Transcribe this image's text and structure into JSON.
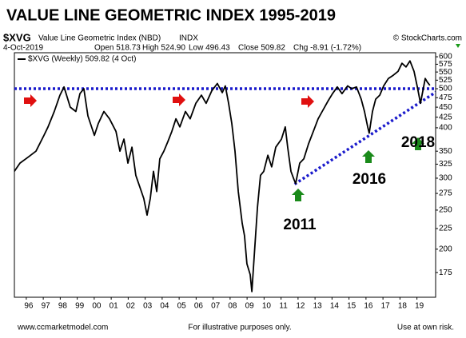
{
  "chart_data": {
    "type": "line",
    "title": "VALUE LINE GEOMETRIC INDEX 1995-2019",
    "symbol": "$XVG",
    "symbol_name": "Value Line Geometric Index (NBD)",
    "exchange": "INDX",
    "source": "© StockCharts.com",
    "date": "4-Oct-2019",
    "quote": [
      "Open 518.73",
      "High 524.90",
      "Low 496.43",
      "Close 509.82",
      "Chg -8.91 (-1.72%)"
    ],
    "log_scale": true,
    "grid": false,
    "xlim": [
      1995.3,
      2020.1
    ],
    "ylim": [
      152,
      614
    ],
    "xticks": [
      {
        "value": 1996,
        "label": "96"
      },
      {
        "value": 1997,
        "label": "97"
      },
      {
        "value": 1998,
        "label": "98"
      },
      {
        "value": 1999,
        "label": "99"
      },
      {
        "value": 2000,
        "label": "00"
      },
      {
        "value": 2001,
        "label": "01"
      },
      {
        "value": 2002,
        "label": "02"
      },
      {
        "value": 2003,
        "label": "03"
      },
      {
        "value": 2004,
        "label": "04"
      },
      {
        "value": 2005,
        "label": "05"
      },
      {
        "value": 2006,
        "label": "06"
      },
      {
        "value": 2007,
        "label": "07"
      },
      {
        "value": 2008,
        "label": "08"
      },
      {
        "value": 2009,
        "label": "09"
      },
      {
        "value": 2010,
        "label": "10"
      },
      {
        "value": 2011,
        "label": "11"
      },
      {
        "value": 2012,
        "label": "12"
      },
      {
        "value": 2013,
        "label": "13"
      },
      {
        "value": 2014,
        "label": "14"
      },
      {
        "value": 2015,
        "label": "15"
      },
      {
        "value": 2016,
        "label": "16"
      },
      {
        "value": 2017,
        "label": "17"
      },
      {
        "value": 2018,
        "label": "18"
      },
      {
        "value": 2019,
        "label": "19"
      }
    ],
    "yticks": [
      175,
      200,
      225,
      250,
      275,
      300,
      325,
      350,
      400,
      425,
      450,
      475,
      500,
      525,
      550,
      575,
      600
    ],
    "x": [
      1995.3,
      1995.63,
      1996.1,
      1996.57,
      1997.04,
      1997.28,
      1997.65,
      1997.98,
      1998.22,
      1998.59,
      1998.92,
      1999.16,
      1999.39,
      1999.63,
      2000.01,
      2000.24,
      2000.57,
      2000.9,
      2001.28,
      2001.51,
      2001.75,
      2001.98,
      2002.22,
      2002.45,
      2002.69,
      2002.92,
      2003.11,
      2003.3,
      2003.49,
      2003.68,
      2003.86,
      2004.1,
      2004.34,
      2004.57,
      2004.81,
      2005.04,
      2005.37,
      2005.65,
      2005.98,
      2006.31,
      2006.59,
      2006.92,
      2007.25,
      2007.54,
      2007.72,
      2007.91,
      2008.1,
      2008.29,
      2008.48,
      2008.71,
      2008.85,
      2008.99,
      2009.18,
      2009.28,
      2009.42,
      2009.61,
      2009.79,
      2009.98,
      2010.22,
      2010.45,
      2010.69,
      2011.02,
      2011.25,
      2011.39,
      2011.58,
      2011.77,
      2011.86,
      2012.1,
      2012.34,
      2012.62,
      2012.9,
      2013.18,
      2013.42,
      2013.75,
      2014.03,
      2014.31,
      2014.59,
      2014.92,
      2015.16,
      2015.44,
      2015.72,
      2015.91,
      2016.1,
      2016.19,
      2016.38,
      2016.57,
      2016.81,
      2017.04,
      2017.32,
      2017.61,
      2017.89,
      2018.12,
      2018.36,
      2018.59,
      2018.83,
      2019.02,
      2019.21,
      2019.3,
      2019.49,
      2019.6,
      2019.76
    ],
    "series": [
      {
        "name": "$XVG (Weekly) 509.82 (4 Oct)",
        "color": "#000000",
        "values": [
          312,
          327,
          338,
          350,
          383,
          402,
          439,
          482,
          505,
          450,
          439,
          486,
          500,
          428,
          383,
          410,
          439,
          421,
          392,
          350,
          375,
          327,
          358,
          305,
          285,
          267,
          243,
          267,
          312,
          278,
          335,
          350,
          370,
          392,
          421,
          402,
          439,
          421,
          460,
          482,
          460,
          494,
          515,
          489,
          508,
          460,
          410,
          350,
          278,
          232,
          216,
          184,
          173,
          157,
          193,
          254,
          305,
          312,
          342,
          320,
          358,
          375,
          402,
          358,
          312,
          297,
          291,
          327,
          335,
          365,
          392,
          421,
          439,
          465,
          486,
          505,
          486,
          508,
          500,
          505,
          471,
          439,
          402,
          388,
          439,
          471,
          482,
          508,
          530,
          540,
          552,
          578,
          566,
          586,
          552,
          505,
          460,
          482,
          530,
          520,
          509.82
        ]
      }
    ],
    "reference_line": {
      "value": 500,
      "color": "#1a1acc"
    },
    "trendline": {
      "x": [
        2011.8,
        2020.1
      ],
      "y": [
        290,
        490
      ],
      "color": "#1a1acc"
    },
    "annotations": [
      "2011",
      "2016",
      "2018"
    ],
    "footer": [
      "www.ccmarketmodel.com",
      "For illustrative purposes only.",
      "Use at own risk."
    ]
  }
}
